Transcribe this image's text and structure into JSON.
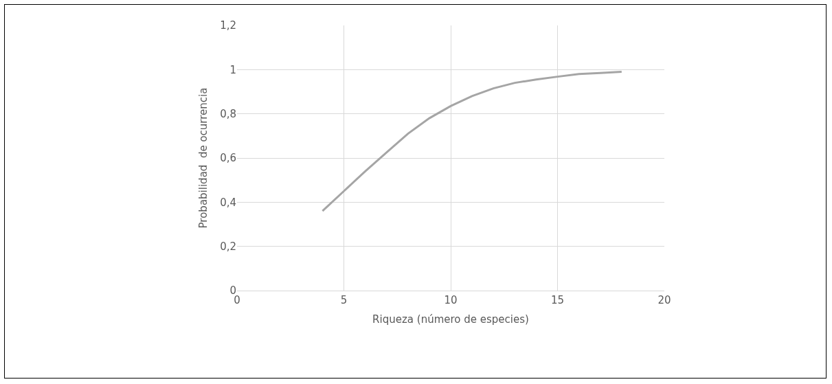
{
  "chart_data": {
    "type": "line",
    "xlabel": "Riqueza (número de especies)",
    "ylabel": "Probabilidad  de ocurrencia",
    "x": [
      4,
      5,
      6,
      7,
      8,
      9,
      10,
      11,
      12,
      13,
      14,
      15,
      16,
      17,
      18
    ],
    "series": [
      {
        "color": "#a5a5a5",
        "values": [
          0.36,
          0.45,
          0.54,
          0.625,
          0.71,
          0.78,
          0.835,
          0.88,
          0.915,
          0.94,
          0.955,
          0.968,
          0.98,
          0.985,
          0.99
        ]
      }
    ],
    "xlim": [
      0,
      20
    ],
    "xticks": [
      0,
      5,
      10,
      15,
      20
    ],
    "ylim": [
      0,
      1.2
    ],
    "yticks": [
      0,
      {
        "value": 0.2,
        "label": "0,2"
      },
      {
        "value": 0.4,
        "label": "0,4"
      },
      {
        "value": 0.6,
        "label": "0,6"
      },
      {
        "value": 0.8,
        "label": "0,8"
      },
      1,
      {
        "value": 1.2,
        "label": "1,2"
      }
    ],
    "grid": true,
    "marker": "none",
    "line_style": "solid"
  }
}
